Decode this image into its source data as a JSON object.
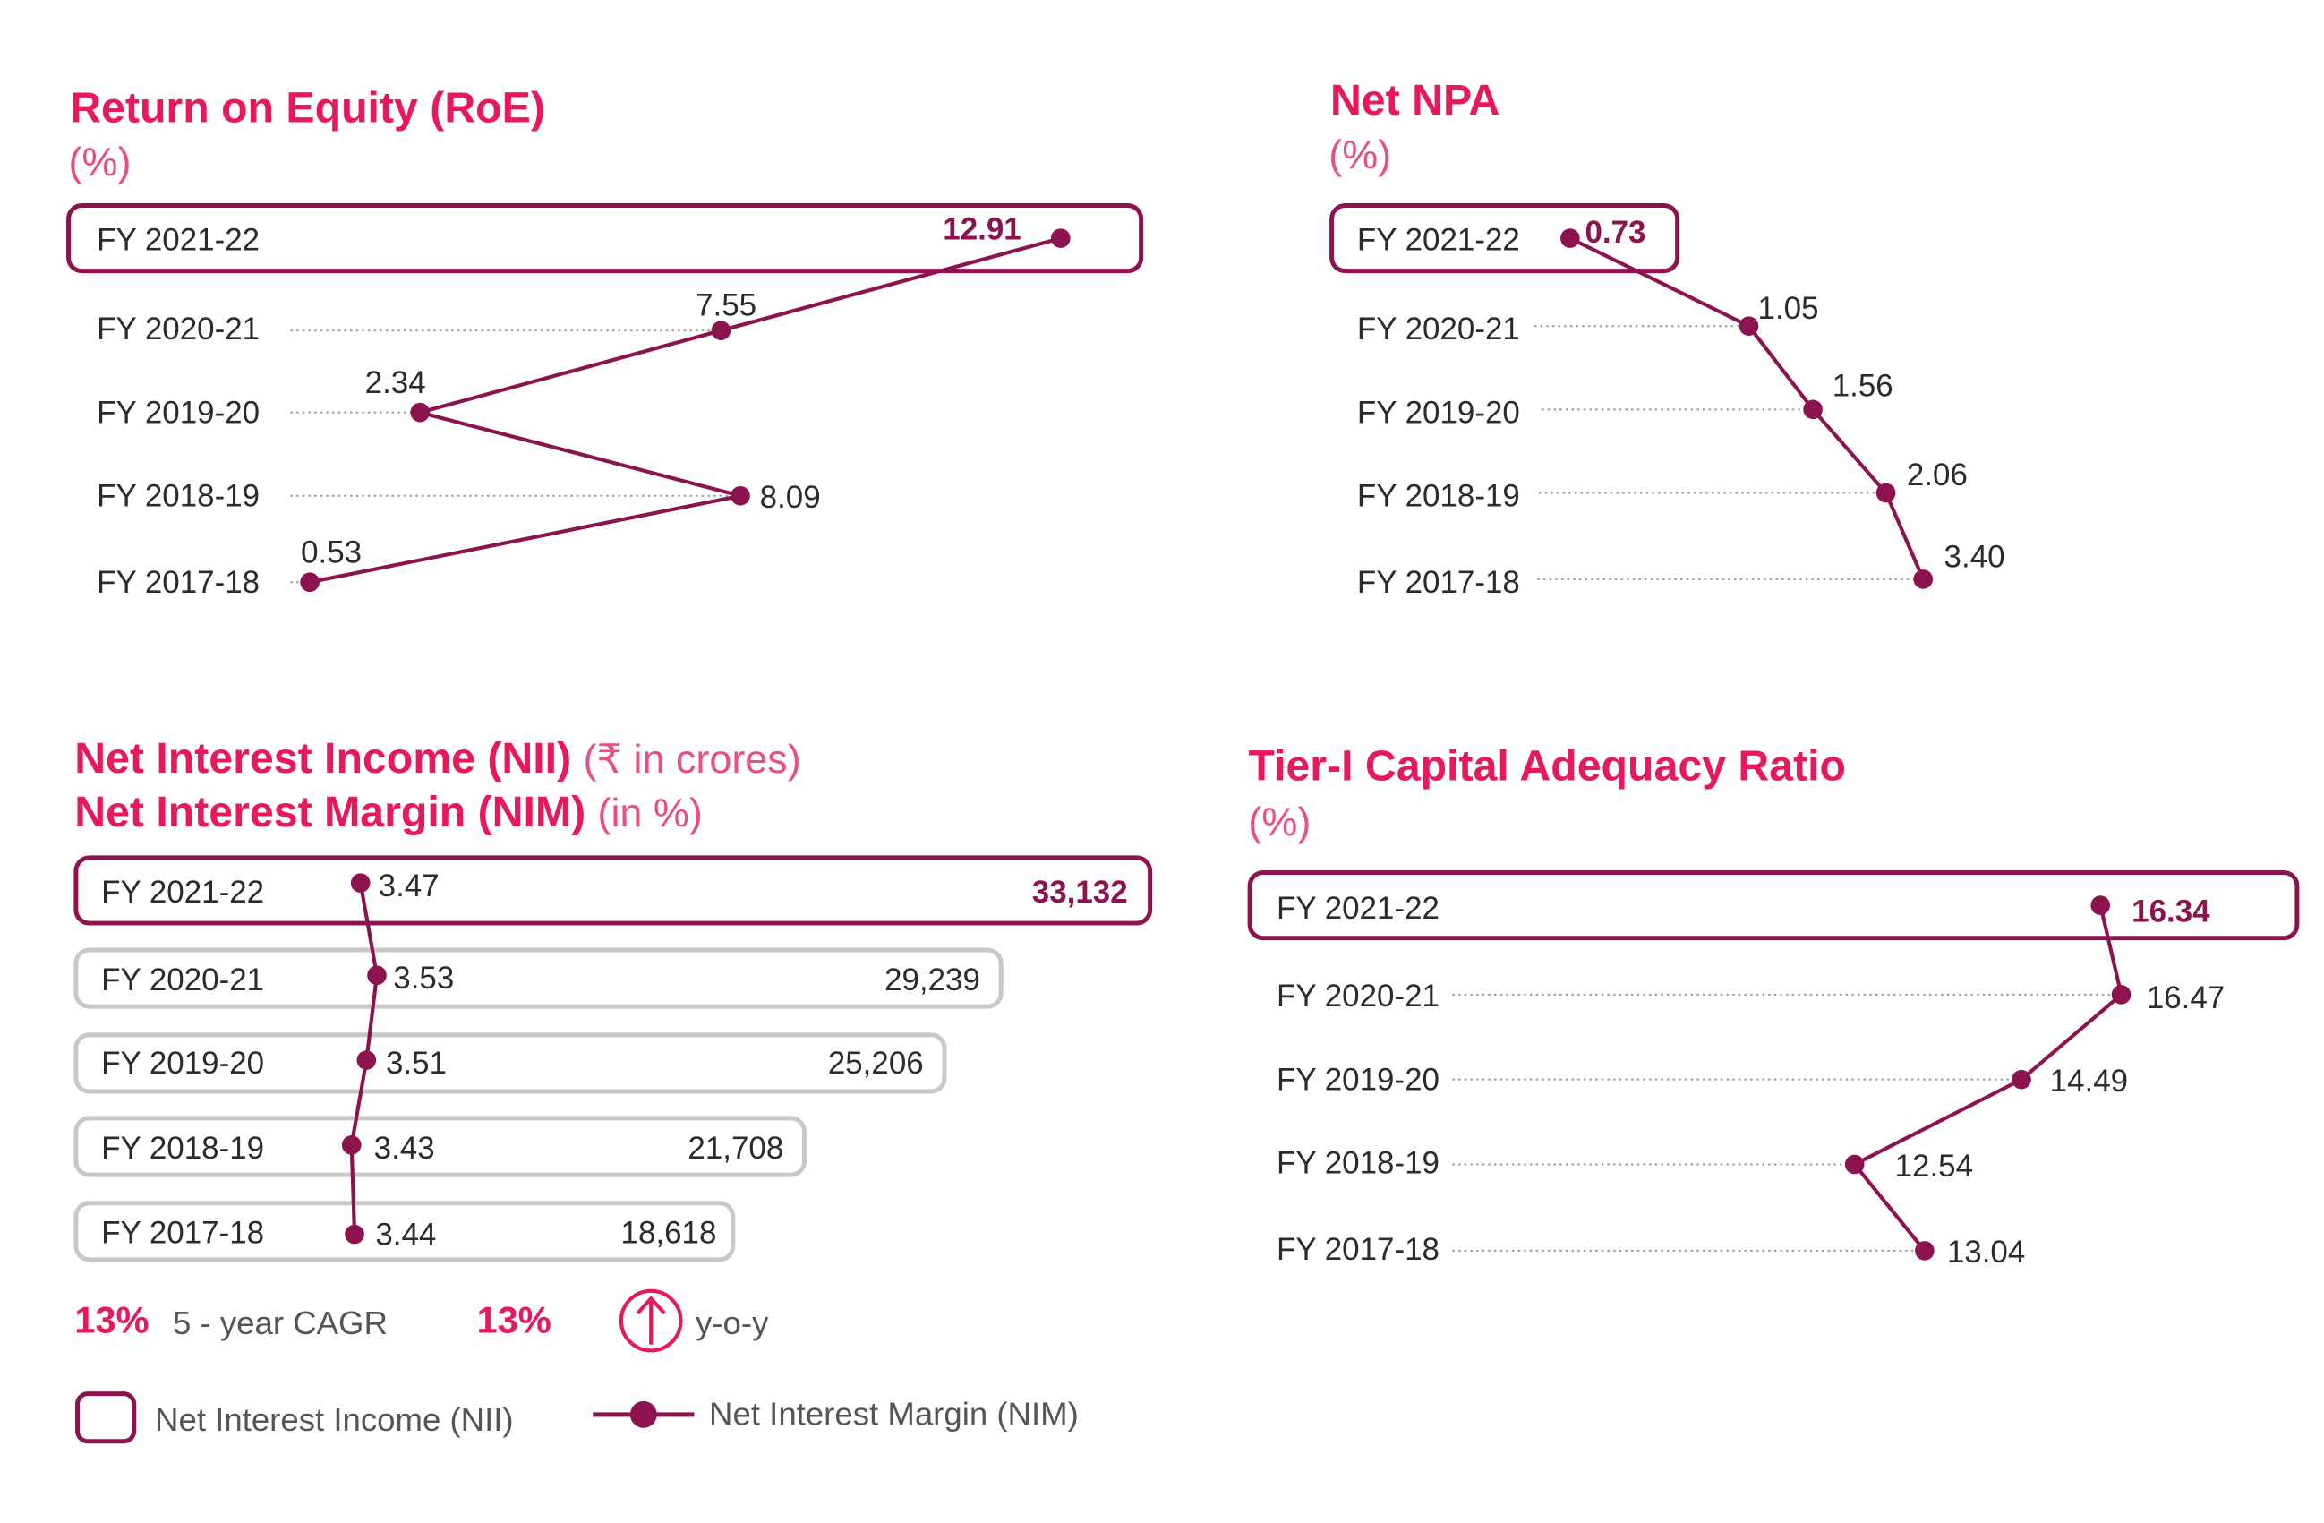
{
  "colors": {
    "title": "#e8195a",
    "line": "#8c1350",
    "box_highlight": "#8c1350",
    "box_other": "#c8c8c8",
    "dots": "#9a9a9a"
  },
  "chart_data": [
    {
      "id": "roe",
      "type": "line",
      "title": "Return on Equity (RoE)",
      "subtitle": "(%)",
      "categories": [
        "FY 2021-22",
        "FY 2020-21",
        "FY 2019-20",
        "FY 2018-19",
        "FY 2017-18"
      ],
      "values": [
        "12.91",
        "7.55",
        "2.34",
        "8.09",
        "0.53"
      ],
      "highlight": "FY 2021-22",
      "xlim": [
        0,
        14
      ]
    },
    {
      "id": "npa",
      "type": "line",
      "title": "Net NPA",
      "subtitle": "(%)",
      "categories": [
        "FY 2021-22",
        "FY 2020-21",
        "FY 2019-20",
        "FY 2018-19",
        "FY 2017-18"
      ],
      "values": [
        "0.73",
        "1.05",
        "1.56",
        "2.06",
        "3.40"
      ],
      "highlight": "FY 2021-22",
      "xlim": [
        0,
        4
      ]
    },
    {
      "id": "nii",
      "type": "bar",
      "title_line1": "Net Interest Income (NII)",
      "title_line1_unit": "(₹ in crores)",
      "title_line2": "Net Interest Margin (NIM)",
      "title_line2_unit": "(in %)",
      "categories": [
        "FY 2021-22",
        "FY 2020-21",
        "FY 2019-20",
        "FY 2018-19",
        "FY 2017-18"
      ],
      "series": [
        {
          "name": "Net Interest Income (NII)",
          "type": "bar",
          "values": [
            "33,132",
            "29,239",
            "25,206",
            "21,708",
            "18,618"
          ]
        },
        {
          "name": "Net Interest Margin (NIM)",
          "type": "line",
          "values": [
            "3.47",
            "3.53",
            "3.51",
            "3.43",
            "3.44"
          ]
        }
      ],
      "highlight": "FY 2021-22",
      "nim_xlim": [
        3.2,
        3.7
      ],
      "kpis": [
        {
          "value": "13%",
          "label": "5 - year CAGR"
        },
        {
          "value": "13%",
          "label": "y-o-y",
          "icon": "arrow-up-circle-icon"
        }
      ],
      "legend": [
        "Net Interest Income (NII)",
        "Net Interest Margin (NIM)"
      ]
    },
    {
      "id": "tier1",
      "type": "line",
      "title": "Tier-I Capital Adequacy Ratio",
      "subtitle": "(%)",
      "categories": [
        "FY 2021-22",
        "FY 2020-21",
        "FY 2019-20",
        "FY 2018-19",
        "FY 2017-18"
      ],
      "values": [
        "16.34",
        "16.47",
        "14.49",
        "12.54",
        "13.04"
      ],
      "highlight": "FY 2021-22",
      "xlim": [
        0,
        17
      ]
    }
  ]
}
